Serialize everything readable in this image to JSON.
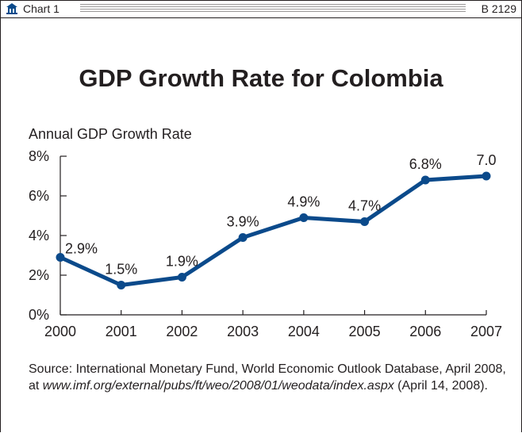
{
  "header": {
    "label": "Chart 1",
    "number": "B 2129"
  },
  "colors": {
    "line": "#0b4a8b",
    "axis": "#231f20"
  },
  "chart_data": {
    "type": "line",
    "title": "GDP Growth Rate for Colombia",
    "ylabel": "Annual GDP Growth Rate",
    "xlabel": "",
    "categories": [
      "2000",
      "2001",
      "2002",
      "2003",
      "2004",
      "2005",
      "2006",
      "2007"
    ],
    "values": [
      2.9,
      1.5,
      1.9,
      3.9,
      4.9,
      4.7,
      6.8,
      7.0
    ],
    "data_labels": [
      "2.9%",
      "1.5%",
      "1.9%",
      "3.9%",
      "4.9%",
      "4.7%",
      "6.8%",
      "7.0"
    ],
    "ylim": [
      0,
      8
    ],
    "yticks": [
      0,
      2,
      4,
      6,
      8
    ],
    "ytick_labels": [
      "0%",
      "2%",
      "4%",
      "6%",
      "8%"
    ],
    "grid": false,
    "legend": "none"
  },
  "source": {
    "label": "Source:",
    "text": " International Monetary Fund, World Economic Outlook Database, April 2008, at ",
    "url": "www.imf.org/external/pubs/ft/weo/2008/01/weodata/index.aspx",
    "date": " (April 14, 2008)."
  }
}
